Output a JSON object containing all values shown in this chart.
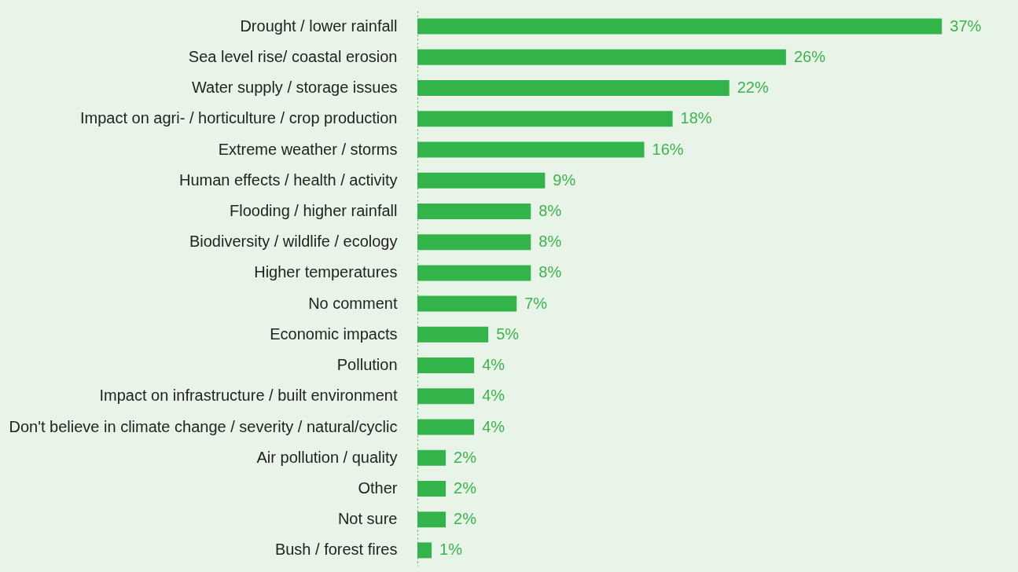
{
  "chart_data": {
    "type": "bar",
    "orientation": "horizontal",
    "categories": [
      "Drought / lower rainfall",
      "Sea level rise/ coastal erosion",
      "Water supply / storage issues",
      "Impact on agri- / horticulture / crop production",
      "Extreme weather / storms",
      "Human effects / health / activity",
      "Flooding / higher rainfall",
      "Biodiversity / wildlife / ecology",
      "Higher temperatures",
      "No comment",
      "Economic impacts",
      "Pollution",
      "Impact on infrastructure / built environment",
      "Don't believe in climate change / severity / natural/cyclic",
      "Air pollution / quality",
      "Other",
      "Not sure",
      "Bush / forest fires"
    ],
    "values": [
      37,
      26,
      22,
      18,
      16,
      9,
      8,
      8,
      8,
      7,
      5,
      4,
      4,
      4,
      2,
      2,
      2,
      1
    ],
    "value_labels": [
      "37%",
      "26%",
      "22%",
      "18%",
      "16%",
      "9%",
      "8%",
      "8%",
      "8%",
      "7%",
      "5%",
      "4%",
      "4%",
      "4%",
      "2%",
      "2%",
      "2%",
      "1%"
    ],
    "color": "#33b44a",
    "grid": false
  }
}
